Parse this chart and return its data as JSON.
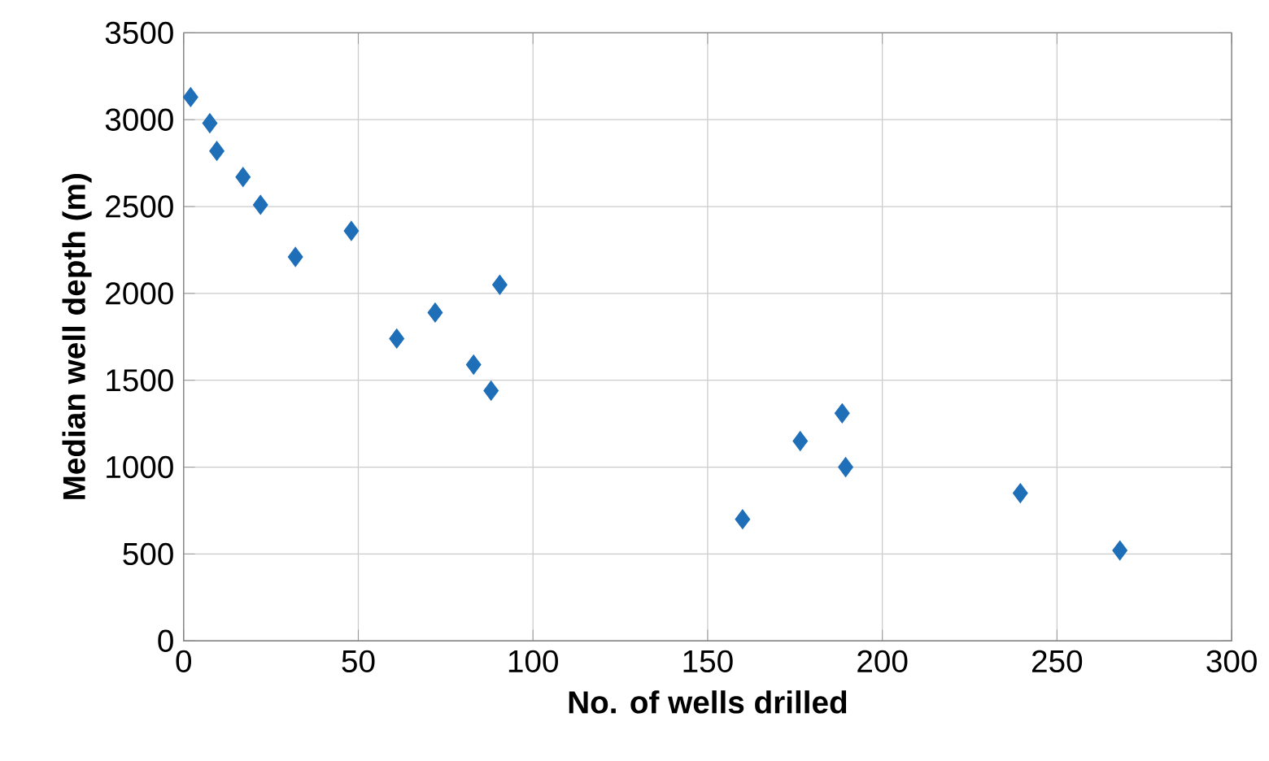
{
  "chart_data": {
    "type": "scatter",
    "xlabel": "No. of wells drilled",
    "ylabel": "Median well depth (m)",
    "x": [
      2,
      7.5,
      9.5,
      17,
      22,
      32,
      48,
      61,
      72,
      83,
      88,
      90.5,
      160,
      176.5,
      188.5,
      189.5,
      239.5,
      268
    ],
    "values": [
      3130,
      2980,
      2820,
      2670,
      2510,
      2210,
      2360,
      1740,
      1890,
      1590,
      1440,
      2050,
      700,
      1150,
      1310,
      1000,
      850,
      520
    ],
    "color": "#1f6fb8",
    "marker": "diamond",
    "grid": true,
    "xlim": [
      0,
      300
    ],
    "xticks": [
      0,
      50,
      100,
      150,
      200,
      250,
      300
    ],
    "ylim": [
      0,
      3500
    ],
    "yticks": [
      0,
      500,
      1000,
      1500,
      2000,
      2500,
      3000,
      3500
    ]
  }
}
